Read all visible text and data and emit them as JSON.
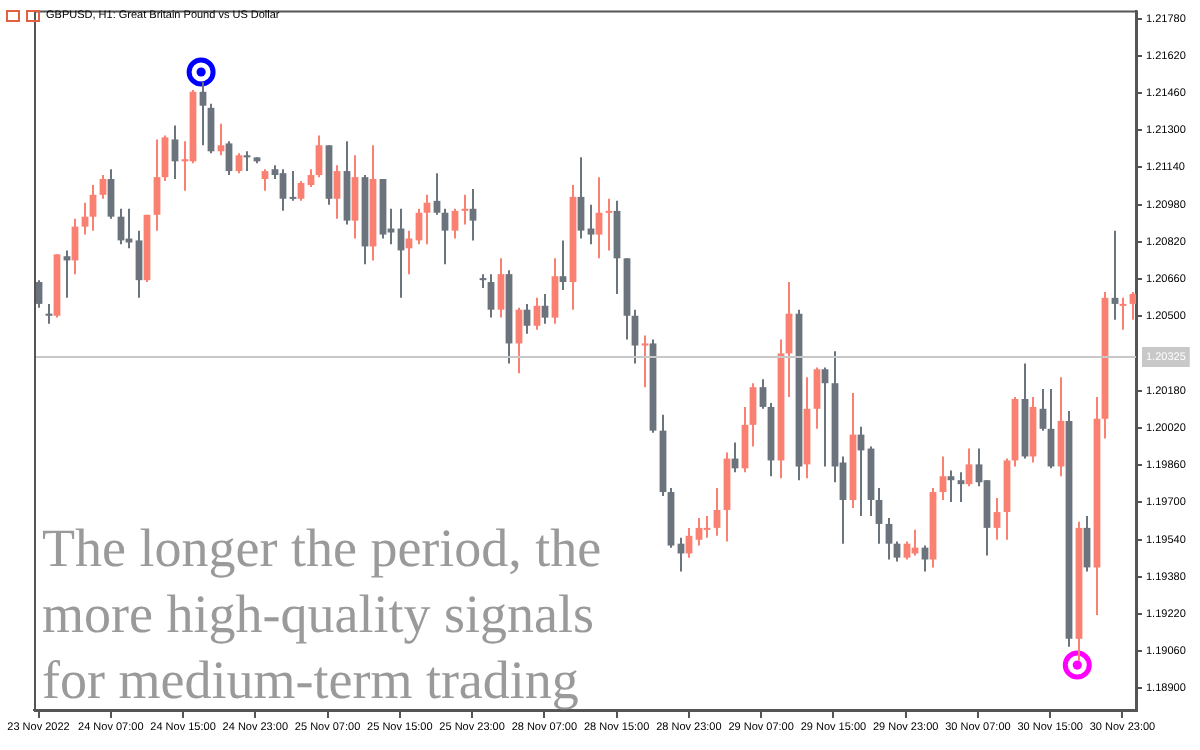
{
  "chart_data": {
    "type": "candlestick",
    "title": "GBPUSD, H1:  Great Britain Pound vs US Dollar",
    "annotations": [
      "The longer the period, the more high-quality signals for medium-term trading"
    ],
    "categories": [
      "23 Nov 2022",
      null,
      null,
      null,
      null,
      null,
      null,
      null,
      "24 Nov 07:00",
      null,
      null,
      null,
      null,
      null,
      null,
      null,
      "24 Nov 15:00",
      null,
      null,
      null,
      null,
      null,
      null,
      null,
      "24 Nov 23:00",
      null,
      null,
      null,
      null,
      null,
      null,
      null,
      "25 Nov 07:00",
      null,
      null,
      null,
      null,
      null,
      null,
      null,
      "25 Nov 15:00",
      null,
      null,
      null,
      null,
      null,
      null,
      null,
      "25 Nov 23:00",
      null,
      null,
      null,
      null,
      null,
      null,
      null,
      "28 Nov 07:00",
      null,
      null,
      null,
      null,
      null,
      null,
      null,
      "28 Nov 15:00",
      null,
      null,
      null,
      null,
      null,
      null,
      null,
      "28 Nov 23:00",
      null,
      null,
      null,
      null,
      null,
      null,
      null,
      "29 Nov 07:00",
      null,
      null,
      null,
      null,
      null,
      null,
      null,
      "29 Nov 15:00",
      null,
      null,
      null,
      null,
      null,
      null,
      null,
      "29 Nov 23:00",
      null,
      null,
      null,
      null,
      null,
      null,
      null,
      "30 Nov 07:00",
      null,
      null,
      null,
      null,
      null,
      null,
      null,
      "30 Nov 15:00",
      null,
      null,
      null,
      null,
      null,
      null,
      null,
      "30 Nov 23:00",
      null
    ],
    "ohlc": [
      [
        1.20647,
        1.20655,
        1.20536,
        1.20553
      ],
      [
        1.20511,
        1.20553,
        1.20468,
        1.20502
      ],
      [
        1.20502,
        1.20766,
        1.20494,
        1.20766
      ],
      [
        1.20758,
        1.20783,
        1.20579,
        1.2074
      ],
      [
        1.2074,
        1.20919,
        1.20681,
        1.20885
      ],
      [
        1.20885,
        1.20988,
        1.20851,
        1.20928
      ],
      [
        1.20928,
        1.21064,
        1.20868,
        1.21022
      ],
      [
        1.21022,
        1.21107,
        1.21005,
        1.2109
      ],
      [
        1.2109,
        1.21132,
        1.20919,
        1.20928
      ],
      [
        1.20928,
        1.20962,
        1.20809,
        1.20826
      ],
      [
        1.20834,
        1.20962,
        1.20792,
        1.20817
      ],
      [
        1.20826,
        1.20868,
        1.20579,
        1.20655
      ],
      [
        1.20655,
        1.20936,
        1.20647,
        1.20936
      ],
      [
        1.20936,
        1.2126,
        1.20868,
        1.21098
      ],
      [
        1.21098,
        1.21277,
        1.21081,
        1.21269
      ],
      [
        1.2126,
        1.2132,
        1.2109,
        1.21166
      ],
      [
        1.21166,
        1.21252,
        1.21039,
        1.21175
      ],
      [
        1.21166,
        1.21473,
        1.21158,
        1.21465
      ],
      [
        1.21465,
        1.21507,
        1.21235,
        1.21405
      ],
      [
        1.21396,
        1.21414,
        1.21201,
        1.21209
      ],
      [
        1.21209,
        1.21328,
        1.21192,
        1.21235
      ],
      [
        1.21243,
        1.21252,
        1.21107,
        1.21124
      ],
      [
        1.21124,
        1.21201,
        1.21115,
        1.21192
      ],
      [
        1.21192,
        1.21209,
        1.21124,
        1.21183
      ],
      [
        1.21183,
        1.21183,
        1.21158,
        1.21166
      ],
      [
        1.2109,
        1.21132,
        1.21039,
        1.21124
      ],
      [
        1.21132,
        1.21149,
        1.2109,
        1.21107
      ],
      [
        1.21115,
        1.21132,
        1.20953,
        1.21005
      ],
      [
        1.21013,
        1.21124,
        1.20996,
        1.21005
      ],
      [
        1.21005,
        1.21081,
        1.20996,
        1.21073
      ],
      [
        1.21064,
        1.21132,
        1.21056,
        1.21107
      ],
      [
        1.21107,
        1.21277,
        1.21098,
        1.21235
      ],
      [
        1.21235,
        1.21235,
        1.20979,
        1.21005
      ],
      [
        1.21005,
        1.21149,
        1.20919,
        1.21124
      ],
      [
        1.21124,
        1.21252,
        1.20894,
        1.20911
      ],
      [
        1.20911,
        1.21192,
        1.20834,
        1.21098
      ],
      [
        1.21098,
        1.21107,
        1.20723,
        1.208
      ],
      [
        1.208,
        1.21235,
        1.2074,
        1.2109
      ],
      [
        1.2109,
        1.2109,
        1.20834,
        1.20851
      ],
      [
        1.20877,
        1.20962,
        1.20809,
        1.2086
      ],
      [
        1.20877,
        1.20962,
        1.20579,
        1.20783
      ],
      [
        1.20792,
        1.20868,
        1.20681,
        1.20834
      ],
      [
        1.20826,
        1.20962,
        1.20809,
        1.20945
      ],
      [
        1.20945,
        1.21022,
        1.20809,
        1.20988
      ],
      [
        1.20996,
        1.21115,
        1.20936,
        1.20945
      ],
      [
        1.20945,
        1.20962,
        1.20723,
        1.20868
      ],
      [
        1.20868,
        1.20962,
        1.20834,
        1.20953
      ],
      [
        1.20953,
        1.21022,
        1.20894,
        1.20962
      ],
      [
        1.20962,
        1.21047,
        1.20826,
        1.20911
      ],
      [
        1.20664,
        1.20681,
        1.20621,
        1.20655
      ],
      [
        1.20647,
        1.20681,
        1.20494,
        1.20528
      ],
      [
        1.20528,
        1.20749,
        1.20494,
        1.20681
      ],
      [
        1.20681,
        1.20698,
        1.20297,
        1.20383
      ],
      [
        1.20383,
        1.20536,
        1.20255,
        1.20528
      ],
      [
        1.20528,
        1.20553,
        1.20425,
        1.20459
      ],
      [
        1.20459,
        1.20579,
        1.20442,
        1.20545
      ],
      [
        1.20545,
        1.20596,
        1.20468,
        1.20494
      ],
      [
        1.20494,
        1.20749,
        1.20468,
        1.20672
      ],
      [
        1.20672,
        1.20826,
        1.20613,
        1.20647
      ],
      [
        1.20647,
        1.21064,
        1.20528,
        1.21013
      ],
      [
        1.21013,
        1.21183,
        1.20834,
        1.20868
      ],
      [
        1.20877,
        1.20979,
        1.20809,
        1.20851
      ],
      [
        1.20851,
        1.21098,
        1.20749,
        1.20945
      ],
      [
        1.20945,
        1.21005,
        1.20783,
        1.20953
      ],
      [
        1.20953,
        1.20996,
        1.20596,
        1.20749
      ],
      [
        1.20749,
        1.20749,
        1.204,
        1.20502
      ],
      [
        1.20502,
        1.20528,
        1.20297,
        1.20374
      ],
      [
        1.20374,
        1.20417,
        1.20195,
        1.20383
      ],
      [
        1.20383,
        1.204,
        1.19999,
        1.20008
      ],
      [
        1.20008,
        1.20076,
        1.19727,
        1.19744
      ],
      [
        1.19744,
        1.19761,
        1.19505,
        1.19514
      ],
      [
        1.19522,
        1.19548,
        1.19403,
        1.1948
      ],
      [
        1.1948,
        1.1959,
        1.19462,
        1.19556
      ],
      [
        1.19539,
        1.19633,
        1.19514,
        1.1959
      ],
      [
        1.19582,
        1.19641,
        1.19548,
        1.1959
      ],
      [
        1.1959,
        1.19761,
        1.19556,
        1.19667
      ],
      [
        1.19667,
        1.19914,
        1.19531,
        1.19888
      ],
      [
        1.19888,
        1.19957,
        1.19829,
        1.19846
      ],
      [
        1.19846,
        1.2011,
        1.19829,
        1.20033
      ],
      [
        1.20033,
        1.20212,
        1.1994,
        1.20195
      ],
      [
        1.20195,
        1.20229,
        1.20102,
        1.2011
      ],
      [
        1.2011,
        1.20127,
        1.19812,
        1.1988
      ],
      [
        1.1988,
        1.204,
        1.19803,
        1.2034
      ],
      [
        1.2034,
        1.20647,
        1.20153,
        1.20511
      ],
      [
        1.20511,
        1.20528,
        1.19795,
        1.19854
      ],
      [
        1.19863,
        1.20238,
        1.19803,
        1.20102
      ],
      [
        1.20102,
        1.2028,
        1.20016,
        1.20272
      ],
      [
        1.20272,
        1.2028,
        1.19854,
        1.20212
      ],
      [
        1.20212,
        1.20349,
        1.19786,
        1.19854
      ],
      [
        1.19871,
        1.19897,
        1.19522,
        1.1971
      ],
      [
        1.1971,
        1.2017,
        1.19675,
        1.19991
      ],
      [
        1.19991,
        1.20025,
        1.19641,
        1.19923
      ],
      [
        1.19931,
        1.1994,
        1.19641,
        1.1971
      ],
      [
        1.1971,
        1.19761,
        1.19522,
        1.19607
      ],
      [
        1.19607,
        1.19633,
        1.19454,
        1.19522
      ],
      [
        1.19522,
        1.19531,
        1.19445,
        1.19462
      ],
      [
        1.19462,
        1.19531,
        1.19454,
        1.19522
      ],
      [
        1.1948,
        1.19582,
        1.19471,
        1.19505
      ],
      [
        1.19505,
        1.19514,
        1.19403,
        1.19454
      ],
      [
        1.19454,
        1.19761,
        1.1942,
        1.19744
      ],
      [
        1.19744,
        1.19897,
        1.1971,
        1.19812
      ],
      [
        1.19812,
        1.19837,
        1.19701,
        1.19795
      ],
      [
        1.19795,
        1.19829,
        1.19701,
        1.19778
      ],
      [
        1.19778,
        1.19931,
        1.19769,
        1.19863
      ],
      [
        1.19863,
        1.19931,
        1.19769,
        1.19786
      ],
      [
        1.19795,
        1.19795,
        1.19471,
        1.1959
      ],
      [
        1.1959,
        1.19718,
        1.19539,
        1.19658
      ],
      [
        1.19658,
        1.19888,
        1.19539,
        1.1988
      ],
      [
        1.1988,
        1.20153,
        1.19854,
        1.20144
      ],
      [
        1.20144,
        1.20297,
        1.19888,
        1.19897
      ],
      [
        1.19897,
        1.20153,
        1.19871,
        1.2011
      ],
      [
        1.20102,
        1.20187,
        1.20008,
        1.20016
      ],
      [
        1.20016,
        1.20187,
        1.19846,
        1.19854
      ],
      [
        1.19854,
        1.20238,
        1.19812,
        1.2005
      ],
      [
        1.2005,
        1.20093,
        1.19079,
        1.19113
      ],
      [
        1.19113,
        1.19616,
        1.19019,
        1.1959
      ],
      [
        1.1959,
        1.19641,
        1.19403,
        1.1942
      ],
      [
        1.1942,
        1.20153,
        1.19215,
        1.20059
      ],
      [
        1.20059,
        1.20604,
        1.19974,
        1.20579
      ],
      [
        1.20579,
        1.20868,
        1.20485,
        1.20553
      ],
      [
        1.20545,
        1.20579,
        1.20442,
        1.20553
      ],
      [
        1.20553,
        1.20604,
        1.20485,
        1.20596
      ]
    ],
    "colors": [
      "#6b737c",
      "#6b737c",
      "#fa8072",
      "#6b737c",
      "#fa8072",
      "#fa8072",
      "#fa8072",
      "#fa8072",
      "#6b737c",
      "#6b737c",
      "#6b737c",
      "#6b737c",
      "#fa8072",
      "#fa8072",
      "#fa8072",
      "#6b737c",
      "#fa8072",
      "#fa8072",
      "#6b737c",
      "#6b737c",
      "#fa8072",
      "#6b737c",
      "#fa8072",
      "#6b737c",
      "#6b737c",
      "#fa8072",
      "#6b737c",
      "#6b737c",
      "#6b737c",
      "#fa8072",
      "#fa8072",
      "#fa8072",
      "#6b737c",
      "#fa8072",
      "#6b737c",
      "#fa8072",
      "#6b737c",
      "#fa8072",
      "#6b737c",
      "#6b737c",
      "#6b737c",
      "#fa8072",
      "#fa8072",
      "#fa8072",
      "#6b737c",
      "#6b737c",
      "#fa8072",
      "#fa8072",
      "#6b737c",
      "#6b737c",
      "#6b737c",
      "#fa8072",
      "#6b737c",
      "#fa8072",
      "#6b737c",
      "#fa8072",
      "#6b737c",
      "#fa8072",
      "#6b737c",
      "#fa8072",
      "#6b737c",
      "#6b737c",
      "#fa8072",
      "#fa8072",
      "#6b737c",
      "#6b737c",
      "#6b737c",
      "#fa8072",
      "#6b737c",
      "#6b737c",
      "#6b737c",
      "#6b737c",
      "#fa8072",
      "#fa8072",
      "#fa8072",
      "#fa8072",
      "#fa8072",
      "#6b737c",
      "#fa8072",
      "#fa8072",
      "#6b737c",
      "#6b737c",
      "#fa8072",
      "#fa8072",
      "#6b737c",
      "#fa8072",
      "#fa8072",
      "#6b737c",
      "#6b737c",
      "#6b737c",
      "#fa8072",
      "#6b737c",
      "#6b737c",
      "#6b737c",
      "#6b737c",
      "#6b737c",
      "#fa8072",
      "#fa8072",
      "#6b737c",
      "#fa8072",
      "#fa8072",
      "#6b737c",
      "#6b737c",
      "#fa8072",
      "#6b737c",
      "#6b737c",
      "#fa8072",
      "#fa8072",
      "#fa8072",
      "#6b737c",
      "#fa8072",
      "#6b737c",
      "#6b737c",
      "#fa8072",
      "#6b737c",
      "#fa8072",
      "#6b737c",
      "#fa8072",
      "#fa8072",
      "#6b737c",
      "#fa8072",
      "#fa8072"
    ],
    "series": [
      {
        "type": "scatter",
        "color": "#0000ff",
        "values": [
          null,
          null,
          null,
          null,
          null,
          null,
          null,
          null,
          null,
          null,
          null,
          null,
          null,
          null,
          null,
          null,
          null,
          null,
          1.2155,
          null,
          null,
          null,
          null,
          null,
          null,
          null,
          null,
          null,
          null,
          null,
          null,
          null,
          null,
          null,
          null,
          null,
          null,
          null,
          null,
          null,
          null,
          null,
          null,
          null,
          null,
          null,
          null,
          null,
          null,
          null,
          null,
          null,
          null,
          null,
          null,
          null,
          null,
          null,
          null,
          null,
          null,
          null,
          null,
          null,
          null,
          null,
          null,
          null,
          null,
          null,
          null,
          null,
          null,
          null,
          null,
          null,
          null,
          null,
          null,
          null,
          null,
          null,
          null,
          null,
          null,
          null,
          null,
          null,
          null,
          null,
          null,
          null,
          null,
          null,
          null,
          null,
          null,
          null,
          null,
          null,
          null,
          null,
          null,
          null,
          null,
          null,
          null,
          null,
          null,
          null,
          null,
          null,
          null,
          null,
          null,
          null,
          null,
          null,
          null,
          null,
          null,
          null
        ]
      },
      {
        "type": "scatter",
        "color": "#ff00ff",
        "values": [
          null,
          null,
          null,
          null,
          null,
          null,
          null,
          null,
          null,
          null,
          null,
          null,
          null,
          null,
          null,
          null,
          null,
          null,
          null,
          null,
          null,
          null,
          null,
          null,
          null,
          null,
          null,
          null,
          null,
          null,
          null,
          null,
          null,
          null,
          null,
          null,
          null,
          null,
          null,
          null,
          null,
          null,
          null,
          null,
          null,
          null,
          null,
          null,
          null,
          null,
          null,
          null,
          null,
          null,
          null,
          null,
          null,
          null,
          null,
          null,
          null,
          null,
          null,
          null,
          null,
          null,
          null,
          null,
          null,
          null,
          null,
          null,
          null,
          null,
          null,
          null,
          null,
          null,
          null,
          null,
          null,
          null,
          null,
          null,
          null,
          null,
          null,
          null,
          null,
          null,
          null,
          null,
          null,
          null,
          null,
          null,
          null,
          null,
          null,
          null,
          null,
          null,
          null,
          null,
          null,
          null,
          null,
          null,
          null,
          null,
          null,
          null,
          null,
          null,
          null,
          1.19,
          null,
          null,
          null,
          null,
          null,
          null
        ]
      }
    ],
    "marker": "circle",
    "ylim": [
      1.18807,
      1.21814
    ],
    "yticks": [
      {
        "value": 1.189,
        "label": "1.18900"
      },
      {
        "value": 1.1906,
        "label": "1.19060"
      },
      {
        "value": 1.1922,
        "label": "1.19220"
      },
      {
        "value": 1.1938,
        "label": "1.19380"
      },
      {
        "value": 1.1954,
        "label": "1.19540"
      },
      {
        "value": 1.197,
        "label": "1.19700"
      },
      {
        "value": 1.1986,
        "label": "1.19860"
      },
      {
        "value": 1.2002,
        "label": "1.20020"
      },
      {
        "value": 1.2018,
        "label": "1.20180"
      },
      {
        "value": 1.205,
        "label": "1.20500"
      },
      {
        "value": 1.2066,
        "label": "1.20660"
      },
      {
        "value": 1.2082,
        "label": "1.20820"
      },
      {
        "value": 1.2098,
        "label": "1.20980"
      },
      {
        "value": 1.2114,
        "label": "1.21140"
      },
      {
        "value": 1.213,
        "label": "1.21300"
      },
      {
        "value": 1.2146,
        "label": "1.21460"
      },
      {
        "value": 1.2162,
        "label": "1.21620"
      },
      {
        "value": 1.2178,
        "label": "1.21780"
      }
    ],
    "ref_lines": [
      {
        "axis": "y",
        "value": 1.20325,
        "label": "1.20325",
        "color": "#c8c8c8"
      }
    ],
    "legend": false,
    "grid": false
  }
}
